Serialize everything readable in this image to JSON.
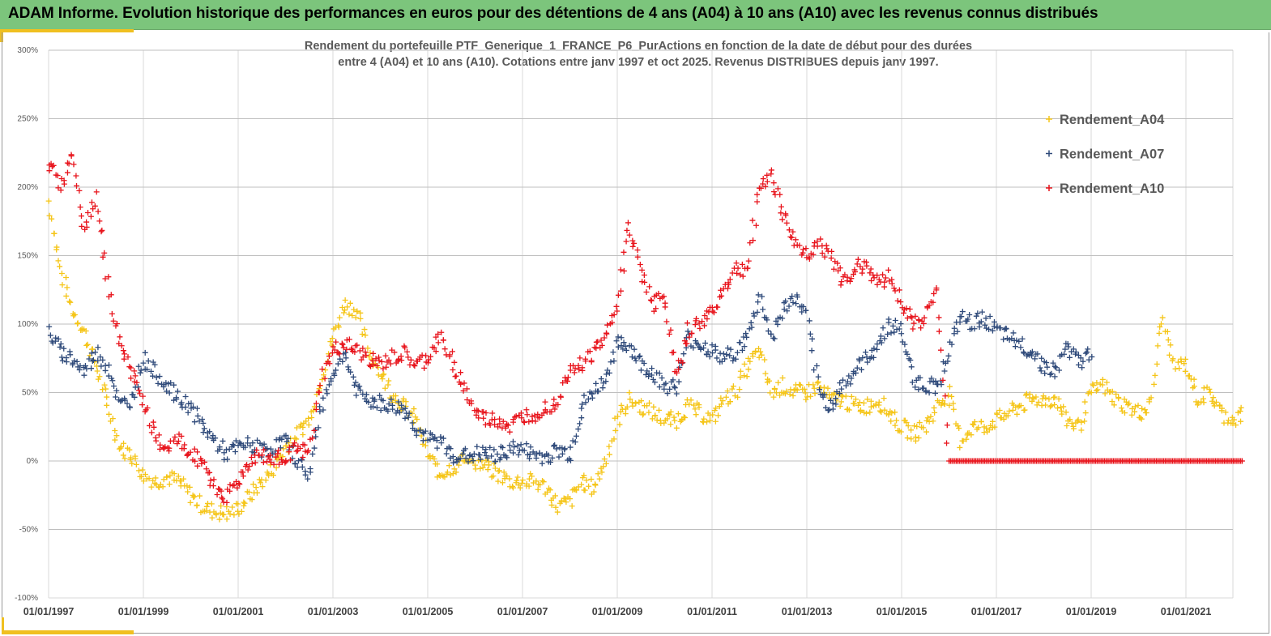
{
  "header": {
    "title": "ADAM Informe. Evolution historique des performances en euros pour des détentions de 4 ans (A04) à 10 ans (A10) avec les revenus connus distribués"
  },
  "chart_data": {
    "type": "scatter",
    "title_lines": [
      "Rendement du portefeuille PTF_Generique_1_FRANCE_P6_PurActions  en fonction de la date de début pour des durées",
      "entre 4 (A04) et 10 ans (A10). Cotations entre janv 1997 et oct 2025. Revenus DISTRIBUES depuis janv 1997."
    ],
    "xlabel": "",
    "ylabel": "",
    "xlim": [
      1997.0,
      2022.2
    ],
    "ylim": [
      -100,
      300
    ],
    "y_ticks": [
      -100,
      -50,
      0,
      50,
      100,
      150,
      200,
      250,
      300
    ],
    "y_tick_labels": [
      "-100%",
      "-50%",
      "0%",
      "50%",
      "100%",
      "150%",
      "200%",
      "250%",
      "300%"
    ],
    "x_ticks": [
      1997,
      1999,
      2001,
      2003,
      2005,
      2007,
      2009,
      2011,
      2013,
      2015,
      2017,
      2019,
      2021
    ],
    "x_tick_labels": [
      "01/01/1997",
      "01/01/1999",
      "01/01/2001",
      "01/01/2003",
      "01/01/2005",
      "01/01/2007",
      "01/01/2009",
      "01/01/2011",
      "01/01/2013",
      "01/01/2015",
      "01/01/2017",
      "01/01/2019",
      "01/01/2021"
    ],
    "grid": true,
    "legend_position": "top-right",
    "marker": "+",
    "x_step": 0.25,
    "series": [
      {
        "name": "Rendement_A04",
        "color": "#F5C518",
        "x_start": 1997.0,
        "values": [
          190,
          140,
          110,
          95,
          70,
          40,
          10,
          5,
          -10,
          -15,
          -12,
          -15,
          -25,
          -33,
          -37,
          -38,
          -35,
          -25,
          -15,
          -5,
          10,
          20,
          30,
          60,
          90,
          115,
          110,
          80,
          65,
          50,
          40,
          30,
          5,
          -10,
          -5,
          0,
          0,
          -5,
          -10,
          -15,
          -15,
          -15,
          -20,
          -33,
          -30,
          -15,
          -20,
          0,
          30,
          45,
          40,
          35,
          30,
          30,
          40,
          35,
          30,
          45,
          50,
          70,
          80,
          50,
          55,
          50,
          50,
          55,
          45,
          45,
          40,
          40,
          45,
          35,
          25,
          20,
          25,
          40,
          50,
          15,
          25,
          25,
          30,
          35,
          40,
          45,
          45,
          45,
          30,
          25,
          50,
          55,
          45,
          40,
          35,
          40,
          105,
          70,
          70,
          45,
          50,
          35,
          30,
          35
        ]
      },
      {
        "name": "Rendement_A07",
        "color": "#2F4A7A",
        "x_start": 1997.0,
        "values": [
          95,
          80,
          75,
          65,
          80,
          70,
          40,
          45,
          75,
          65,
          55,
          45,
          40,
          25,
          15,
          5,
          10,
          12,
          8,
          10,
          15,
          0,
          -10,
          40,
          65,
          80,
          50,
          45,
          42,
          40,
          38,
          25,
          15,
          15,
          5,
          3,
          5,
          5,
          3,
          10,
          8,
          5,
          3,
          8,
          5,
          40,
          50,
          60,
          85,
          85,
          70,
          65,
          55,
          55,
          90,
          85,
          80,
          75,
          80,
          90,
          120,
          90,
          110,
          120,
          105,
          50,
          40,
          55,
          65,
          75,
          85,
          100,
          95,
          60,
          55,
          55,
          80,
          105,
          100,
          105,
          95,
          90,
          85,
          80,
          70,
          65,
          85,
          70,
          80
        ]
      },
      {
        "name": "Rendement_A10",
        "color": "#E8141C",
        "x_start": 1997.0,
        "values": [
          220,
          200,
          225,
          170,
          195,
          130,
          85,
          65,
          45,
          15,
          10,
          15,
          5,
          0,
          -20,
          -25,
          -15,
          0,
          5,
          0,
          5,
          8,
          5,
          60,
          80,
          85,
          80,
          75,
          70,
          75,
          78,
          70,
          75,
          90,
          75,
          55,
          35,
          30,
          30,
          25,
          32,
          35,
          40,
          45,
          70,
          70,
          80,
          90,
          115,
          170,
          140,
          115,
          120,
          60,
          95,
          100,
          110,
          125,
          140,
          140,
          200,
          210,
          180,
          160,
          150,
          160,
          150,
          130,
          140,
          145,
          130,
          135,
          115,
          100,
          105,
          125,
          0,
          0,
          0,
          0,
          0,
          0,
          0,
          0,
          0,
          0,
          0,
          0,
          0,
          0,
          0,
          0,
          0,
          0,
          0,
          0,
          0,
          0,
          0,
          0,
          0,
          0,
          0,
          0,
          0,
          0
        ]
      }
    ]
  }
}
